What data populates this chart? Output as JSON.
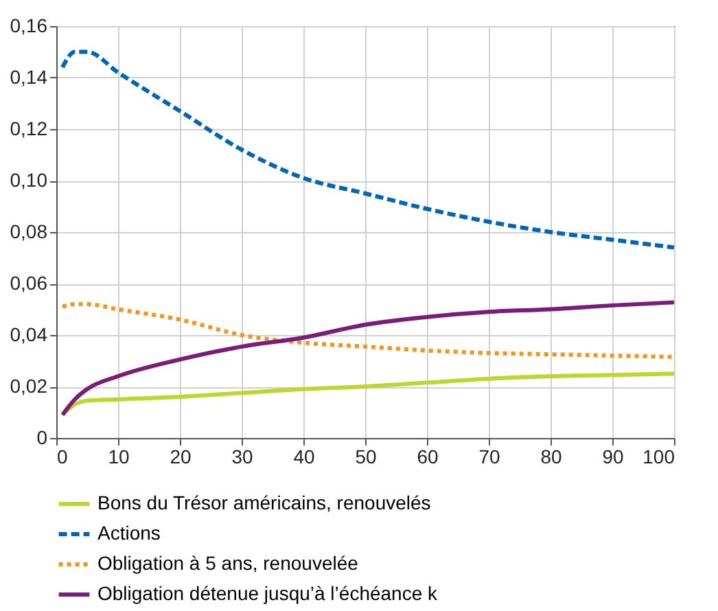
{
  "chart_data": {
    "type": "line",
    "x": [
      1,
      3,
      5,
      10,
      20,
      30,
      40,
      50,
      60,
      70,
      80,
      90,
      100
    ],
    "series": [
      {
        "name": "Bons du Trésor américains, renouvelés",
        "color": "#bed630",
        "line_style": "solid",
        "values": [
          0.009,
          0.013,
          0.0145,
          0.015,
          0.016,
          0.0175,
          0.019,
          0.02,
          0.0215,
          0.023,
          0.024,
          0.0245,
          0.025
        ]
      },
      {
        "name": "Actions",
        "color": "#0066b3",
        "line_style": "dashed",
        "values": [
          0.144,
          0.15,
          0.15,
          0.142,
          0.127,
          0.112,
          0.101,
          0.095,
          0.089,
          0.084,
          0.08,
          0.077,
          0.074
        ]
      },
      {
        "name": "Obligation à 5 ans, renouvelée",
        "color": "#f7941d",
        "line_style": "dotted",
        "values": [
          0.051,
          0.052,
          0.052,
          0.05,
          0.046,
          0.04,
          0.037,
          0.0355,
          0.034,
          0.033,
          0.0325,
          0.032,
          0.0315
        ]
      },
      {
        "name": "Obligation détenue jusqu’à l’échéance k",
        "color": "#7b1c7a",
        "line_style": "solid",
        "values": [
          0.009,
          0.015,
          0.019,
          0.024,
          0.0305,
          0.0355,
          0.039,
          0.044,
          0.047,
          0.049,
          0.05,
          0.0515,
          0.0527
        ]
      }
    ],
    "xlim": [
      0,
      100
    ],
    "xticks": [
      0,
      10,
      20,
      30,
      40,
      50,
      60,
      70,
      80,
      90,
      100
    ],
    "ylim": [
      0,
      0.16
    ],
    "yticks": [
      {
        "value": 0,
        "label": "0"
      },
      {
        "value": 0.02,
        "label": "0,02"
      },
      {
        "value": 0.04,
        "label": "0,04"
      },
      {
        "value": 0.06,
        "label": "0,06"
      },
      {
        "value": 0.08,
        "label": "0,08"
      },
      {
        "value": 0.1,
        "label": "0,10"
      },
      {
        "value": 0.12,
        "label": "0,12"
      },
      {
        "value": 0.14,
        "label": "0,14"
      },
      {
        "value": 0.16,
        "label": "0,16"
      }
    ],
    "grid": true,
    "legend": "bottom",
    "marker": "none"
  }
}
